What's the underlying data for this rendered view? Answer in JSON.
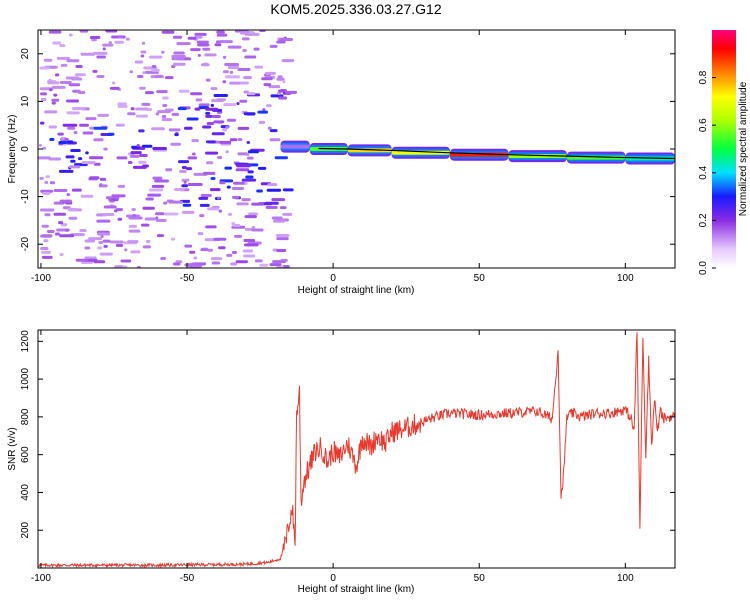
{
  "title": "KOM5.2025.336.03.27.G12",
  "chart_data": [
    {
      "type": "heatmap",
      "xlabel": "Height of straight line (km)",
      "ylabel": "Frequency (Hz)",
      "xlim": [
        -101,
        117
      ],
      "ylim": [
        -25,
        25
      ],
      "xticks": [
        -100,
        -50,
        0,
        50,
        100
      ],
      "yticks": [
        -20,
        -10,
        0,
        10,
        20
      ],
      "colorbar": {
        "label": "Normalized spectral amplitude",
        "range": [
          0,
          1
        ],
        "ticks": [
          0.0,
          0.2,
          0.4,
          0.6,
          0.8
        ]
      },
      "trace_segments": [
        {
          "x": [
            -18,
            -8
          ],
          "y": 0.5,
          "amplitude": 0.15
        },
        {
          "x": [
            -8,
            5
          ],
          "y": 0.0,
          "amplitude": 0.55
        },
        {
          "x": [
            5,
            20
          ],
          "y": -0.3,
          "amplitude": 0.75
        },
        {
          "x": [
            20,
            40
          ],
          "y": -0.8,
          "amplitude": 0.7
        },
        {
          "x": [
            40,
            60
          ],
          "y": -1.2,
          "amplitude": 0.9
        },
        {
          "x": [
            60,
            80
          ],
          "y": -1.5,
          "amplitude": 0.6
        },
        {
          "x": [
            80,
            100
          ],
          "y": -1.8,
          "amplitude": 0.55
        },
        {
          "x": [
            100,
            117
          ],
          "y": -2.0,
          "amplitude": 0.45
        }
      ]
    },
    {
      "type": "line",
      "xlabel": "Height of straight line (km)",
      "ylabel": "SNR (v/v)",
      "xlim": [
        -101,
        117
      ],
      "ylim": [
        0,
        1260
      ],
      "xticks": [
        -100,
        -50,
        0,
        50,
        100
      ],
      "yticks": [
        200,
        400,
        600,
        800,
        1000,
        1200
      ],
      "color": "#e8392f",
      "series": [
        {
          "name": "SNR",
          "x": [
            -101,
            -60,
            -30,
            -22,
            -18,
            -16,
            -15,
            -14,
            -13,
            -12.5,
            -11.5,
            -11,
            -10,
            -8,
            -6,
            -4,
            -2,
            0,
            2,
            5,
            8,
            10,
            13,
            15,
            18,
            20,
            25,
            30,
            35,
            40,
            50,
            60,
            70,
            75,
            77,
            78,
            79,
            80,
            82,
            85,
            90,
            95,
            100,
            102,
            103,
            104,
            105,
            106,
            107,
            108,
            109,
            110,
            111,
            112,
            113,
            115,
            117
          ],
          "y": [
            15,
            15,
            20,
            30,
            50,
            150,
            250,
            320,
            120,
            820,
            930,
            350,
            460,
            540,
            620,
            640,
            560,
            620,
            580,
            660,
            540,
            690,
            640,
            700,
            660,
            720,
            740,
            770,
            800,
            820,
            810,
            820,
            830,
            790,
            1160,
            370,
            520,
            800,
            820,
            800,
            820,
            820,
            840,
            790,
            720,
            1260,
            200,
            1240,
            600,
            1100,
            650,
            900,
            720,
            830,
            790,
            800,
            800
          ]
        }
      ]
    }
  ]
}
